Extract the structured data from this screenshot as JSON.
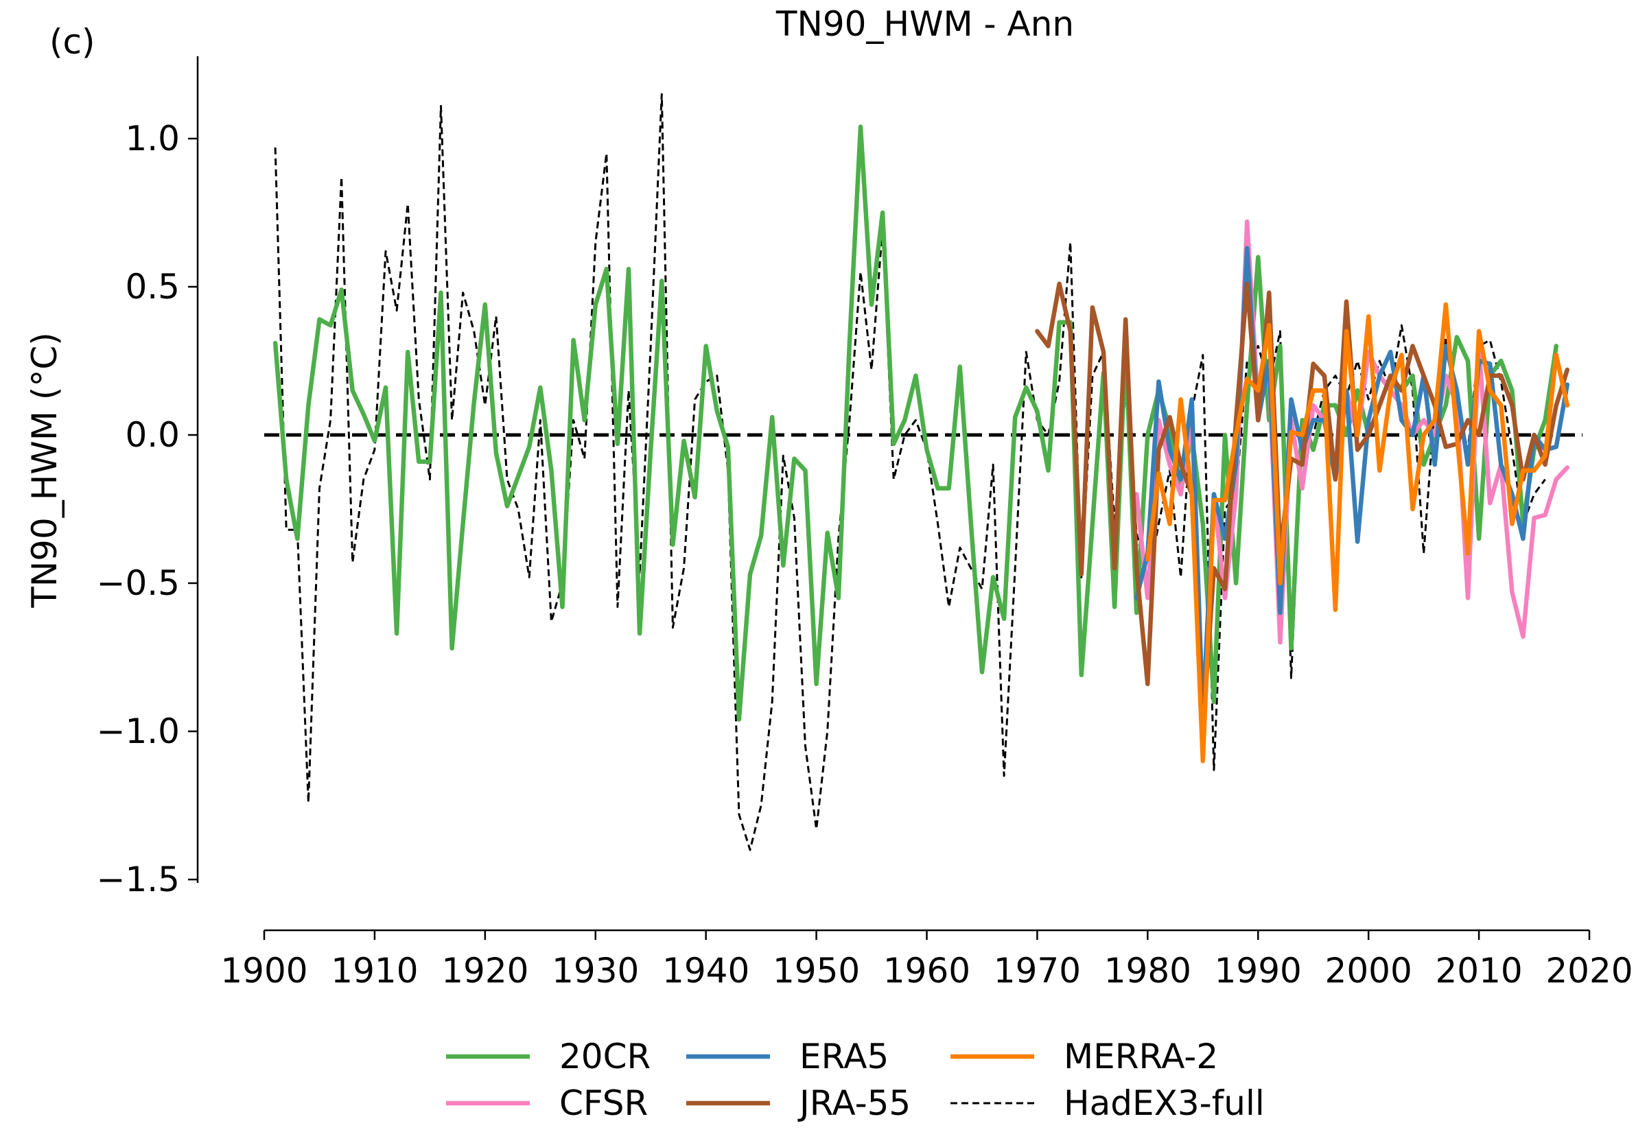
{
  "chart_data": {
    "type": "line",
    "panel_label": "(c)",
    "title": "TN90_HWM - Ann",
    "xlabel": "",
    "ylabel": "TN90_HWM (°C)",
    "xlim": [
      1900,
      2020
    ],
    "ylim": [
      -1.5,
      1.25
    ],
    "xticks": [
      1900,
      1910,
      1920,
      1930,
      1940,
      1950,
      1960,
      1970,
      1980,
      1990,
      2000,
      2010,
      2020
    ],
    "yticks": [
      {
        "value": 1.0,
        "label": "1.0"
      },
      {
        "value": 0.5,
        "label": "0.5"
      },
      {
        "value": 0.0,
        "label": "0.0"
      },
      {
        "value": -0.5,
        "label": "−0.5"
      },
      {
        "value": -1.0,
        "label": "−1.0"
      },
      {
        "value": -1.5,
        "label": "−1.5"
      }
    ],
    "zero_line": 0.0,
    "series": [
      {
        "name": "HadEX3-full",
        "color": "#000000",
        "dashed": true,
        "start_year": 1901,
        "values": [
          0.97,
          -0.32,
          -0.32,
          -1.24,
          -0.18,
          0.05,
          0.87,
          -0.43,
          -0.15,
          -0.05,
          0.62,
          0.42,
          0.78,
          0.12,
          -0.15,
          1.11,
          0.05,
          0.48,
          0.35,
          0.1,
          0.4,
          -0.15,
          -0.25,
          -0.48,
          0.05,
          -0.63,
          -0.5,
          0.05,
          -0.08,
          0.65,
          0.95,
          -0.58,
          0.15,
          -0.47,
          0.3,
          1.15,
          -0.65,
          -0.45,
          0.12,
          0.18,
          0.2,
          -0.12,
          -1.28,
          -1.4,
          -1.25,
          -0.9,
          -0.07,
          -0.28,
          -1.05,
          -1.33,
          -1.0,
          -0.35,
          0.05,
          0.55,
          0.22,
          0.7,
          -0.15,
          0.0,
          0.05,
          -0.05,
          -0.3,
          -0.58,
          -0.38,
          -0.45,
          -0.52,
          -0.1,
          -1.15,
          -0.45,
          0.28,
          0.05,
          0.0,
          0.18,
          0.65,
          -0.48,
          0.2,
          0.28,
          -0.3,
          0.15,
          -0.33,
          -0.5,
          -0.3,
          -0.12,
          -0.48,
          0.08,
          0.27,
          -1.13,
          -0.25,
          -0.2,
          0.25,
          0.3,
          0.17,
          0.35,
          -0.82,
          0.02,
          0.0,
          0.15,
          0.2,
          0.13,
          0.25,
          0.12,
          0.25,
          0.15,
          0.37,
          0.15,
          -0.4,
          0.1,
          0.33,
          0.1,
          -0.05,
          0.3,
          0.32,
          0.18,
          -0.05,
          -0.3,
          -0.2,
          -0.15
        ]
      },
      {
        "name": "20CR",
        "color": "#4daf4a",
        "dashed": false,
        "start_year": 1901,
        "values": [
          0.31,
          -0.15,
          -0.35,
          0.1,
          0.39,
          0.37,
          0.49,
          0.15,
          0.07,
          -0.02,
          0.16,
          -0.67,
          0.28,
          -0.09,
          -0.09,
          0.48,
          -0.72,
          -0.3,
          0.11,
          0.44,
          -0.06,
          -0.24,
          -0.14,
          -0.04,
          0.16,
          -0.12,
          -0.58,
          0.32,
          0.05,
          0.44,
          0.56,
          -0.03,
          0.56,
          -0.67,
          -0.05,
          0.52,
          -0.37,
          -0.02,
          -0.21,
          0.3,
          0.08,
          -0.04,
          -0.96,
          -0.47,
          -0.34,
          0.06,
          -0.44,
          -0.08,
          -0.12,
          -0.84,
          -0.33,
          -0.55,
          0.31,
          1.04,
          0.44,
          0.75,
          -0.03,
          0.05,
          0.2,
          -0.05,
          -0.18,
          -0.18,
          0.23,
          -0.3,
          -0.8,
          -0.48,
          -0.62,
          0.06,
          0.16,
          0.08,
          -0.12,
          0.38,
          0.38,
          -0.81,
          -0.3,
          0.21,
          -0.58,
          0.3,
          -0.6,
          0.0,
          0.15,
          0.02,
          -0.18,
          0.0,
          -0.3,
          -0.9,
          0.0,
          -0.5,
          0.1,
          0.6,
          0.05,
          0.3,
          -0.72,
          0.05,
          -0.05,
          0.1,
          0.1,
          0.0,
          0.15,
          0.0,
          0.1,
          0.2,
          0.15,
          0.2,
          -0.1,
          0.0,
          0.1,
          0.33,
          0.25,
          -0.35,
          0.2,
          0.25,
          0.15,
          -0.3,
          -0.05,
          0.05,
          0.3
        ]
      },
      {
        "name": "CFSR",
        "color": "#f781bf",
        "dashed": false,
        "start_year": 1979,
        "values": [
          -0.2,
          -0.55,
          0.05,
          -0.1,
          -0.2,
          0.05,
          -0.95,
          -0.2,
          -0.55,
          -0.2,
          0.72,
          0.1,
          0.22,
          -0.7,
          0.05,
          -0.18,
          0.1,
          0.05,
          -0.12,
          0.15,
          0.0,
          0.28,
          0.2,
          0.15,
          0.1,
          0.0,
          0.05,
          0.0,
          0.2,
          0.1,
          -0.55,
          0.3,
          -0.23,
          -0.1,
          -0.53,
          -0.68,
          -0.28,
          -0.27,
          -0.15,
          -0.11
        ]
      },
      {
        "name": "ERA5",
        "color": "#377eb8",
        "dashed": false,
        "start_year": 1979,
        "values": [
          -0.55,
          -0.4,
          0.18,
          -0.05,
          -0.15,
          0.12,
          -0.95,
          -0.2,
          -0.35,
          -0.1,
          0.63,
          0.05,
          0.25,
          -0.6,
          0.12,
          -0.05,
          0.05,
          0.05,
          -0.15,
          0.15,
          -0.36,
          0.05,
          0.2,
          0.28,
          0.05,
          0.0,
          0.2,
          -0.1,
          0.3,
          0.15,
          -0.1,
          0.25,
          0.24,
          -0.1,
          -0.2,
          -0.35,
          0.0,
          -0.05,
          -0.04,
          0.17
        ]
      },
      {
        "name": "JRA-55",
        "color": "#a65628",
        "dashed": false,
        "start_year": 1970,
        "values": [
          0.35,
          0.3,
          0.51,
          0.35,
          -0.47,
          0.43,
          0.28,
          -0.45,
          0.39,
          -0.45,
          -0.84,
          -0.05,
          0.06,
          -0.1,
          -0.2,
          -1.0,
          -0.45,
          -0.52,
          0.05,
          0.51,
          0.05,
          0.48,
          -0.4,
          -0.08,
          -0.1,
          0.24,
          0.2,
          -0.15,
          0.45,
          -0.05,
          0.0,
          0.1,
          0.2,
          0.15,
          0.3,
          0.2,
          0.1,
          -0.04,
          -0.03,
          0.05,
          0.0,
          0.2,
          0.2,
          0.1,
          -0.15,
          0.0,
          -0.1,
          0.1,
          0.22
        ]
      },
      {
        "name": "MERRA-2",
        "color": "#ff7f00",
        "dashed": false,
        "start_year": 1980,
        "values": [
          -0.42,
          -0.13,
          -0.3,
          0.12,
          -0.2,
          -1.1,
          -0.22,
          -0.22,
          0.0,
          0.19,
          0.15,
          0.37,
          -0.5,
          0.01,
          0.0,
          0.15,
          0.15,
          -0.59,
          0.35,
          0.0,
          0.4,
          -0.12,
          0.15,
          0.27,
          -0.25,
          0.0,
          0.05,
          0.44,
          0.0,
          -0.4,
          0.35,
          0.15,
          0.1,
          -0.3,
          -0.12,
          -0.12,
          -0.07,
          0.27,
          0.1
        ]
      }
    ],
    "legend": {
      "placement": "bottom-center",
      "entries": [
        "20CR",
        "CFSR",
        "ERA5",
        "JRA-55",
        "MERRA-2",
        "HadEX3-full"
      ]
    }
  }
}
